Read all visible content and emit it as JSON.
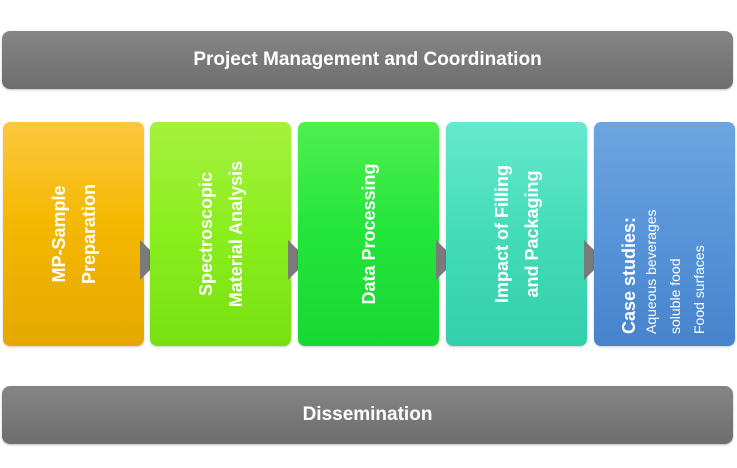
{
  "header": {
    "title": "Project Management and Coordination"
  },
  "footer": {
    "title": "Dissemination"
  },
  "stages": [
    {
      "lines": [
        "MP-Sample",
        "Preparation"
      ]
    },
    {
      "lines": [
        "Spectroscopic",
        "Material Analysis"
      ]
    },
    {
      "lines": [
        "Data Processing"
      ]
    },
    {
      "lines": [
        "Impact of Filling",
        "and Packaging"
      ]
    },
    {
      "title": "Case studies:",
      "items": [
        "Aqueous beverages",
        "soluble food",
        "Food surfaces"
      ]
    }
  ],
  "colors": {
    "bar": "#7a7a7a",
    "stage1": "#f5b800",
    "stage2": "#8aee1c",
    "stage3": "#22e53a",
    "stage4": "#44dcb8",
    "stage5": "#5794d8",
    "arrow": "#7a7a7a"
  }
}
